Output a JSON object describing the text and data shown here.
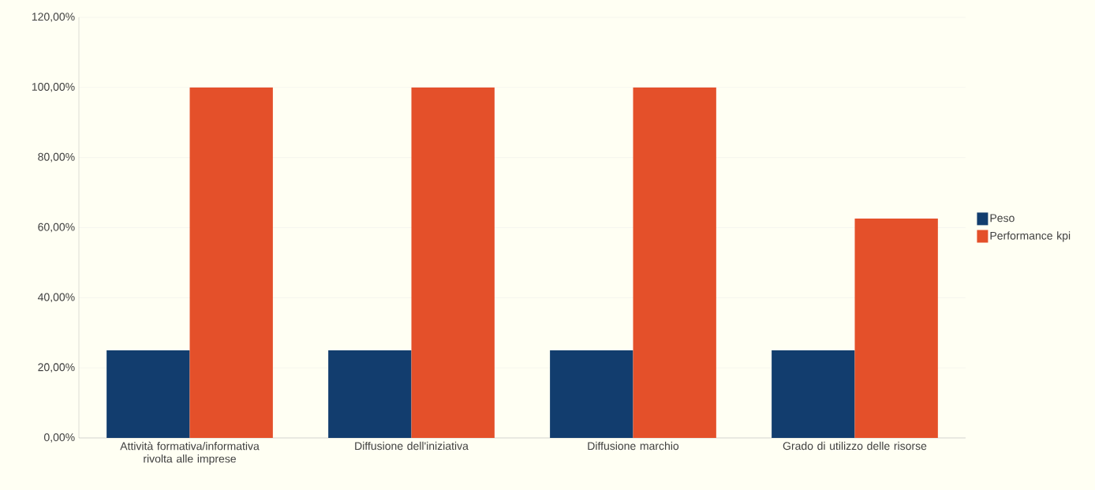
{
  "chart_data": {
    "type": "bar",
    "categories": [
      "Attività formativa/informativa rivolta alle imprese",
      "Diffusione dell'iniziativa",
      "Diffusione marchio",
      "Grado di utilizzo delle risorse"
    ],
    "series": [
      {
        "name": "Peso",
        "color": "#123d6e",
        "values": [
          25,
          25,
          25,
          25
        ]
      },
      {
        "name": "Performance kpi",
        "color": "#e4502a",
        "values": [
          100,
          100,
          100,
          62.6
        ]
      }
    ],
    "ylim": [
      0,
      120
    ],
    "yticks": [
      {
        "value": 0,
        "label": "0,00%"
      },
      {
        "value": 20,
        "label": "20,00%"
      },
      {
        "value": 40,
        "label": "40,00%"
      },
      {
        "value": 60,
        "label": "60,00%"
      },
      {
        "value": 80,
        "label": "80,00%"
      },
      {
        "value": 100,
        "label": "100,00%"
      },
      {
        "value": 120,
        "label": "120,00%"
      }
    ],
    "grid": "y",
    "legend": "right"
  }
}
